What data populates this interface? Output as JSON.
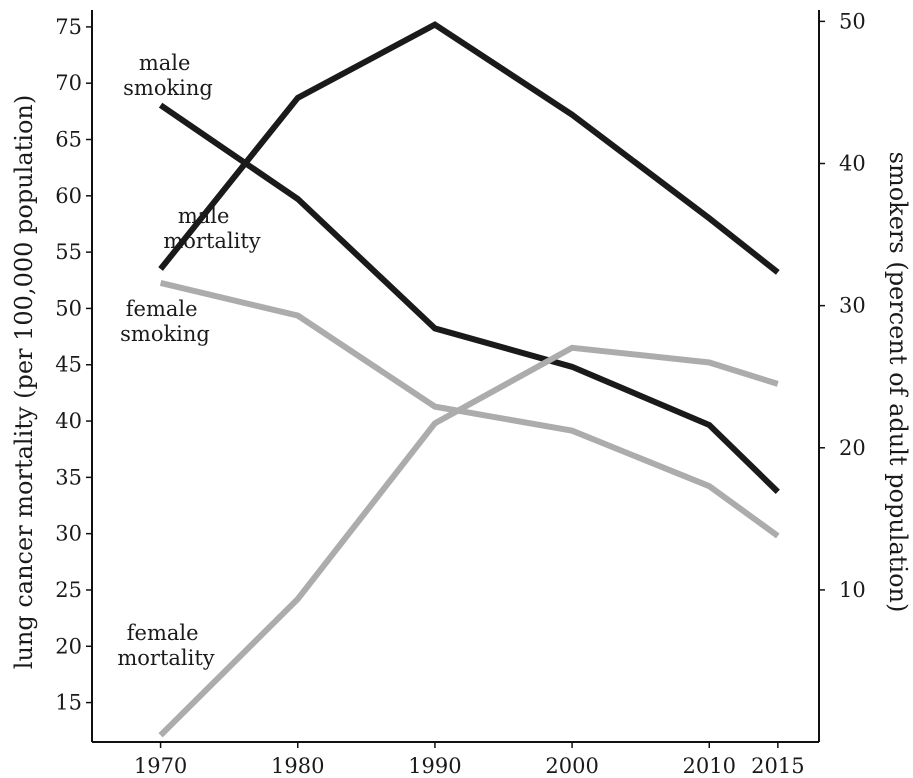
{
  "chart_data": {
    "type": "line",
    "title": "",
    "x": [
      1970,
      1980,
      1990,
      2000,
      2010,
      2015
    ],
    "xticks": [
      "1970",
      "1980",
      "1990",
      "2000",
      "2010",
      "2015"
    ],
    "xlim": [
      1965,
      2018
    ],
    "left_axis": {
      "label": "lung cancer mortality (per 100,000 population)",
      "ticks": [
        "15",
        "20",
        "25",
        "30",
        "35",
        "40",
        "45",
        "50",
        "55",
        "60",
        "65",
        "70",
        "75"
      ],
      "ylim": [
        11.5,
        76.5
      ]
    },
    "right_axis": {
      "label": "smokers (percent of adult population)",
      "ticks": [
        "10",
        "20",
        "30",
        "40",
        "50"
      ],
      "ylim": [
        -0.7,
        50.8
      ]
    },
    "series": [
      {
        "name": "male smoking",
        "axis": "right",
        "color": "#1a1a1a",
        "values": [
          44.1,
          37.5,
          28.4,
          25.7,
          21.6,
          16.9
        ]
      },
      {
        "name": "male mortality",
        "axis": "left",
        "color": "#1a1a1a",
        "values": [
          53.5,
          68.7,
          75.2,
          67.2,
          58.0,
          53.2
        ]
      },
      {
        "name": "female smoking",
        "axis": "right",
        "color": "#acacac",
        "values": [
          31.6,
          29.3,
          22.9,
          21.2,
          17.3,
          13.8
        ]
      },
      {
        "name": "female mortality",
        "axis": "left",
        "color": "#acacac",
        "values": [
          12.1,
          24.2,
          39.8,
          46.5,
          45.2,
          43.3
        ]
      }
    ],
    "annotations": [
      {
        "id": "male-smoking",
        "lines": [
          "male",
          "smoking"
        ]
      },
      {
        "id": "male-mortality",
        "lines": [
          "male",
          "mortality"
        ]
      },
      {
        "id": "female-smoking",
        "lines": [
          "female",
          "smoking"
        ]
      },
      {
        "id": "female-mortality",
        "lines": [
          "female",
          "mortality"
        ]
      }
    ],
    "grid": false,
    "legend": "none"
  }
}
